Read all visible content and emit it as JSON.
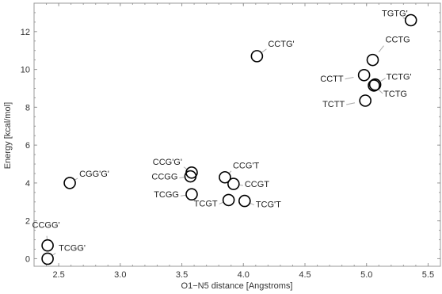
{
  "chart_data": {
    "type": "scatter",
    "xlabel": "O1−N5 distance [Angstroms]",
    "ylabel": "Energy [kcal/mol]",
    "xlim": [
      2.3,
      5.6
    ],
    "ylim": [
      -0.4,
      13.5
    ],
    "xticks": [
      "2.5",
      "3.0",
      "3.5",
      "4.0",
      "4.5",
      "5.0",
      "5.5"
    ],
    "yticks": [
      "0",
      "2",
      "4",
      "6",
      "8",
      "10",
      "12"
    ],
    "grid": false,
    "marker_color": "#000000",
    "points": [
      {
        "label": "TGTG'",
        "x": 5.36,
        "y": 12.6
      },
      {
        "label": "CCTG'",
        "x": 4.11,
        "y": 10.7
      },
      {
        "label": "CCTG",
        "x": 5.05,
        "y": 10.5
      },
      {
        "label": "CCTT",
        "x": 4.98,
        "y": 9.7
      },
      {
        "label": "TCTG'",
        "x": 5.07,
        "y": 9.2
      },
      {
        "label": "TCTG",
        "x": 5.06,
        "y": 9.15
      },
      {
        "label": "TCTT",
        "x": 4.99,
        "y": 8.35
      },
      {
        "label": "CGG'G'",
        "x": 2.59,
        "y": 4.0
      },
      {
        "label": "CCG'G'",
        "x": 3.58,
        "y": 4.55
      },
      {
        "label": "CCGG",
        "x": 3.57,
        "y": 4.35
      },
      {
        "label": "CCG'T",
        "x": 3.85,
        "y": 4.3
      },
      {
        "label": "CCGT",
        "x": 3.92,
        "y": 3.95
      },
      {
        "label": "TCGG",
        "x": 3.58,
        "y": 3.4
      },
      {
        "label": "TCGT",
        "x": 3.88,
        "y": 3.1
      },
      {
        "label": "TCG'T",
        "x": 4.01,
        "y": 3.05
      },
      {
        "label": "CCGG'",
        "x": 2.41,
        "y": 0.7
      },
      {
        "label": "TCGG'",
        "x": 2.41,
        "y": 0.0
      }
    ]
  }
}
